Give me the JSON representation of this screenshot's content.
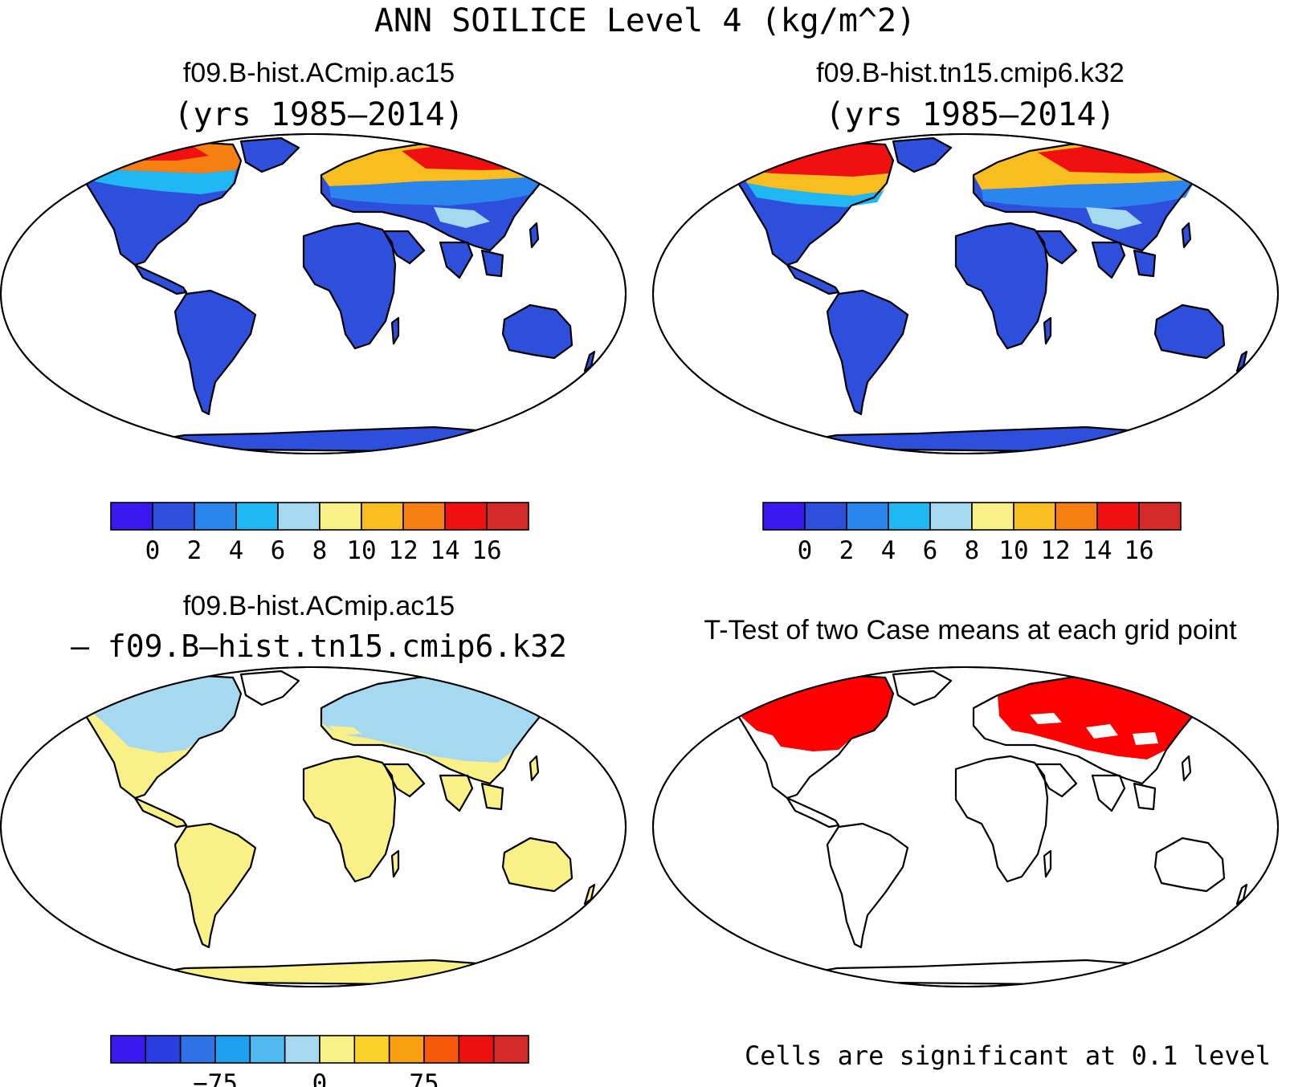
{
  "figure": {
    "title": "ANN SOILICE Level 4 (kg/m^2)"
  },
  "panels": [
    {
      "id": "case1",
      "title_line1": "f09.B-hist.ACmip.ac15",
      "title_line2": "(yrs 1985–2014)"
    },
    {
      "id": "case2",
      "title_line1": "f09.B-hist.tn15.cmip6.k32",
      "title_line2": "(yrs 1985–2014)"
    },
    {
      "id": "diff",
      "title_line1": "f09.B-hist.ACmip.ac15",
      "title_line2": "– f09.B–hist.tn15.cmip6.k32"
    },
    {
      "id": "ttest",
      "title_line1": "T-Test of two Case means at each grid point",
      "title_line2": ""
    }
  ],
  "colorbars": {
    "case": {
      "colors": [
        "#3a18f0",
        "#2e4fdc",
        "#2a86ec",
        "#1fb8f5",
        "#a6d8f0",
        "#faf088",
        "#f8be20",
        "#f77e10",
        "#f01010",
        "#d52a2a"
      ],
      "labels": [
        "0",
        "2",
        "4",
        "6",
        "8",
        "10",
        "12",
        "14",
        "16"
      ]
    },
    "diff": {
      "colors": [
        "#3a18f0",
        "#2a3ee0",
        "#2f72e8",
        "#1ea0f0",
        "#4fb9f0",
        "#a6d8f0",
        "#faf088",
        "#fbd22a",
        "#f8a010",
        "#f8580a",
        "#ee1010",
        "#d52a2a"
      ],
      "labels": [
        "−75",
        "0",
        "75"
      ]
    }
  },
  "significance_note": "Cells are significant at 0.1 level",
  "map_colors": {
    "land_low": "#2e4fdc",
    "case1_high": "#f01010",
    "diff_negative": "#a6d8f0",
    "diff_positive": "#faf088",
    "significant": "#ff0000"
  }
}
